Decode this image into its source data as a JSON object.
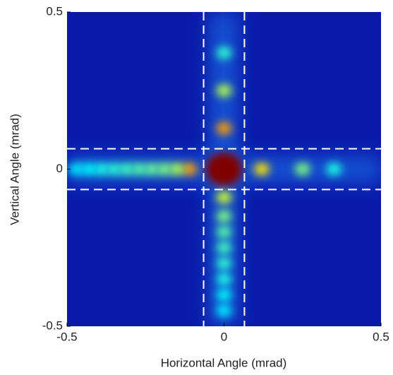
{
  "chart_data": {
    "type": "heatmap",
    "x_label": "Horizontal Angle (mrad)",
    "y_label": "Vertical Angle (mrad)",
    "xlim": [
      -0.5,
      0.5
    ],
    "ylim": [
      -0.5,
      0.5
    ],
    "xticks": [
      -0.5,
      0,
      0.5
    ],
    "yticks": [
      -0.5,
      0,
      0.5
    ],
    "colorscale": "jet",
    "x": [
      0,
      -0.11,
      -0.15,
      -0.19,
      -0.23,
      -0.27,
      -0.31,
      -0.35,
      -0.39,
      -0.43,
      -0.47,
      0.12,
      0.25,
      0.35,
      0,
      0,
      0,
      0,
      0,
      0,
      0,
      0,
      0,
      0,
      0
    ],
    "y": [
      0,
      0,
      0,
      0,
      0,
      0,
      0,
      0,
      0,
      0,
      0,
      0,
      0,
      0,
      0.13,
      0.25,
      0.37,
      -0.09,
      -0.15,
      -0.2,
      -0.25,
      -0.3,
      -0.35,
      -0.4,
      -0.45
    ],
    "values": [
      1,
      0.72,
      0.55,
      0.5,
      0.48,
      0.46,
      0.44,
      0.42,
      0.4,
      0.38,
      0.36,
      0.65,
      0.5,
      0.4,
      0.72,
      0.55,
      0.42,
      0.58,
      0.5,
      0.46,
      0.44,
      0.42,
      0.4,
      0.38,
      0.36
    ],
    "vlines": [
      -0.065,
      0.065
    ],
    "hlines": [
      -0.065,
      0.065
    ]
  }
}
